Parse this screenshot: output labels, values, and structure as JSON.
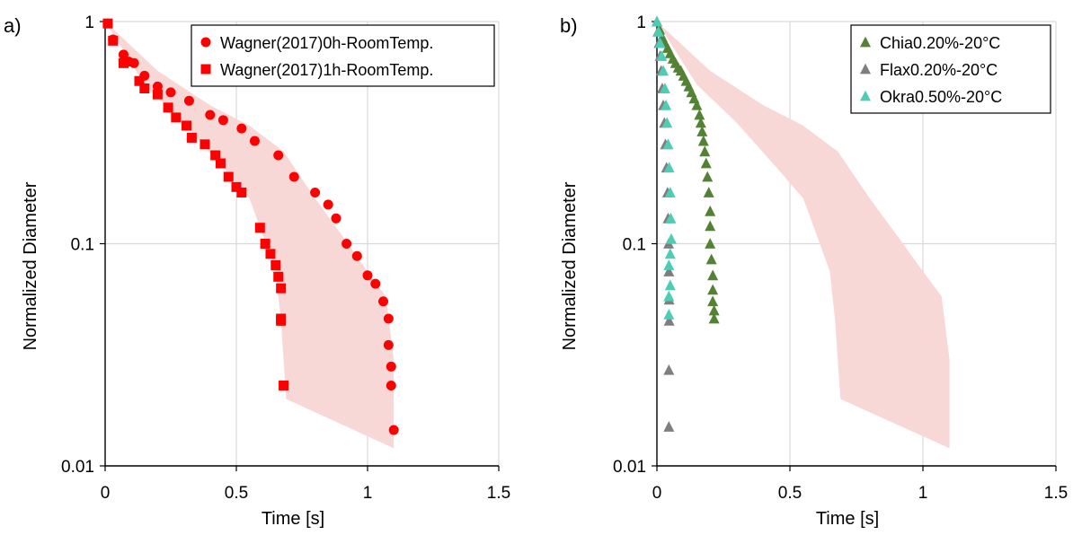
{
  "chart_data": [
    {
      "type": "scatter",
      "panel_label": "a)",
      "xlabel": "Time [s]",
      "ylabel": "Normalized Diameter",
      "xlim": [
        0,
        1.5
      ],
      "ylim": [
        0.01,
        1
      ],
      "yscale": "log",
      "grid": true,
      "legend_position": "top-right",
      "x_ticks": [
        "0",
        "0.5",
        "1",
        "1.5"
      ],
      "y_ticks": [
        "0.01",
        "0.1",
        "1"
      ],
      "band": {
        "color": "#f8d7d7",
        "upper": [
          [
            0.0,
            1.0
          ],
          [
            0.2,
            0.6
          ],
          [
            0.4,
            0.42
          ],
          [
            0.55,
            0.34
          ],
          [
            0.68,
            0.26
          ],
          [
            0.8,
            0.16
          ],
          [
            0.9,
            0.11
          ],
          [
            1.0,
            0.075
          ],
          [
            1.07,
            0.058
          ],
          [
            1.1,
            0.03
          ],
          [
            1.1,
            0.012
          ]
        ],
        "lower": [
          [
            0.0,
            1.0
          ],
          [
            0.15,
            0.52
          ],
          [
            0.3,
            0.35
          ],
          [
            0.45,
            0.22
          ],
          [
            0.55,
            0.16
          ],
          [
            0.6,
            0.11
          ],
          [
            0.65,
            0.075
          ],
          [
            0.67,
            0.045
          ],
          [
            0.69,
            0.02
          ],
          [
            1.1,
            0.012
          ]
        ]
      },
      "series": [
        {
          "name": "Wagner(2017)0h-RoomTemp.",
          "marker": "circle",
          "color": "#ff0000",
          "points": [
            [
              0.01,
              0.98
            ],
            [
              0.03,
              0.83
            ],
            [
              0.07,
              0.71
            ],
            [
              0.09,
              0.66
            ],
            [
              0.11,
              0.65
            ],
            [
              0.15,
              0.57
            ],
            [
              0.2,
              0.51
            ],
            [
              0.25,
              0.48
            ],
            [
              0.32,
              0.44
            ],
            [
              0.4,
              0.38
            ],
            [
              0.45,
              0.36
            ],
            [
              0.52,
              0.33
            ],
            [
              0.57,
              0.29
            ],
            [
              0.66,
              0.25
            ],
            [
              0.72,
              0.2
            ],
            [
              0.8,
              0.17
            ],
            [
              0.85,
              0.15
            ],
            [
              0.88,
              0.13
            ],
            [
              0.92,
              0.1
            ],
            [
              0.96,
              0.088
            ],
            [
              1.0,
              0.072
            ],
            [
              1.03,
              0.066
            ],
            [
              1.06,
              0.055
            ],
            [
              1.08,
              0.046
            ],
            [
              1.08,
              0.035
            ],
            [
              1.09,
              0.028
            ],
            [
              1.09,
              0.023
            ],
            [
              1.1,
              0.0145
            ]
          ]
        },
        {
          "name": "Wagner(2017)1h-RoomTemp.",
          "marker": "square",
          "color": "#ff0000",
          "points": [
            [
              0.01,
              0.98
            ],
            [
              0.03,
              0.82
            ],
            [
              0.07,
              0.65
            ],
            [
              0.13,
              0.54
            ],
            [
              0.15,
              0.5
            ],
            [
              0.2,
              0.47
            ],
            [
              0.24,
              0.41
            ],
            [
              0.27,
              0.37
            ],
            [
              0.31,
              0.34
            ],
            [
              0.33,
              0.3
            ],
            [
              0.38,
              0.28
            ],
            [
              0.42,
              0.25
            ],
            [
              0.44,
              0.23
            ],
            [
              0.47,
              0.2
            ],
            [
              0.5,
              0.18
            ],
            [
              0.52,
              0.17
            ],
            [
              0.59,
              0.118
            ],
            [
              0.61,
              0.1
            ],
            [
              0.63,
              0.09
            ],
            [
              0.65,
              0.08
            ],
            [
              0.66,
              0.071
            ],
            [
              0.67,
              0.063
            ],
            [
              0.67,
              0.045
            ],
            [
              0.67,
              0.046
            ],
            [
              0.68,
              0.023
            ]
          ]
        }
      ]
    },
    {
      "type": "scatter",
      "panel_label": "b)",
      "xlabel": "Time [s]",
      "ylabel": "Normalized Diameter",
      "xlim": [
        0,
        1.5
      ],
      "ylim": [
        0.01,
        1
      ],
      "yscale": "log",
      "grid": true,
      "legend_position": "top-right",
      "x_ticks": [
        "0",
        "0.5",
        "1",
        "1.5"
      ],
      "y_ticks": [
        "0.01",
        "0.1",
        "1"
      ],
      "band": {
        "color": "#f8d7d7",
        "upper": [
          [
            0.0,
            1.0
          ],
          [
            0.2,
            0.6
          ],
          [
            0.4,
            0.42
          ],
          [
            0.55,
            0.34
          ],
          [
            0.68,
            0.26
          ],
          [
            0.8,
            0.16
          ],
          [
            0.9,
            0.11
          ],
          [
            1.0,
            0.075
          ],
          [
            1.07,
            0.058
          ],
          [
            1.1,
            0.03
          ],
          [
            1.1,
            0.012
          ]
        ],
        "lower": [
          [
            0.0,
            1.0
          ],
          [
            0.15,
            0.52
          ],
          [
            0.3,
            0.35
          ],
          [
            0.45,
            0.22
          ],
          [
            0.55,
            0.16
          ],
          [
            0.6,
            0.11
          ],
          [
            0.65,
            0.075
          ],
          [
            0.67,
            0.045
          ],
          [
            0.69,
            0.02
          ],
          [
            1.1,
            0.012
          ]
        ]
      },
      "series": [
        {
          "name": "Chia0.20%-20°C",
          "marker": "triangle",
          "color": "#548235",
          "points": [
            [
              0.0,
              1.0
            ],
            [
              0.01,
              0.92
            ],
            [
              0.02,
              0.85
            ],
            [
              0.03,
              0.8
            ],
            [
              0.04,
              0.76
            ],
            [
              0.05,
              0.72
            ],
            [
              0.06,
              0.68
            ],
            [
              0.07,
              0.65
            ],
            [
              0.08,
              0.62
            ],
            [
              0.09,
              0.6
            ],
            [
              0.1,
              0.57
            ],
            [
              0.11,
              0.54
            ],
            [
              0.12,
              0.51
            ],
            [
              0.13,
              0.48
            ],
            [
              0.14,
              0.45
            ],
            [
              0.15,
              0.42
            ],
            [
              0.16,
              0.38
            ],
            [
              0.165,
              0.35
            ],
            [
              0.17,
              0.32
            ],
            [
              0.175,
              0.29
            ],
            [
              0.18,
              0.26
            ],
            [
              0.185,
              0.23
            ],
            [
              0.19,
              0.2
            ],
            [
              0.195,
              0.17
            ],
            [
              0.2,
              0.14
            ],
            [
              0.2,
              0.12
            ],
            [
              0.2,
              0.1
            ],
            [
              0.205,
              0.085
            ],
            [
              0.21,
              0.072
            ],
            [
              0.21,
              0.062
            ],
            [
              0.21,
              0.055
            ],
            [
              0.215,
              0.05
            ],
            [
              0.215,
              0.046
            ]
          ]
        },
        {
          "name": "Flax0.20%-20°C",
          "marker": "triangle",
          "color": "#7f7f7f",
          "points": [
            [
              0.0,
              1.0
            ],
            [
              0.004,
              0.9
            ],
            [
              0.008,
              0.8
            ],
            [
              0.012,
              0.7
            ],
            [
              0.016,
              0.6
            ],
            [
              0.02,
              0.5
            ],
            [
              0.024,
              0.42
            ],
            [
              0.028,
              0.35
            ],
            [
              0.032,
              0.28
            ],
            [
              0.036,
              0.22
            ],
            [
              0.04,
              0.17
            ],
            [
              0.042,
              0.13
            ],
            [
              0.044,
              0.1
            ],
            [
              0.045,
              0.075
            ],
            [
              0.046,
              0.056
            ],
            [
              0.046,
              0.045
            ],
            [
              0.045,
              0.027
            ],
            [
              0.045,
              0.015
            ]
          ]
        },
        {
          "name": "Okra0.50%-20°C",
          "marker": "triangle",
          "color": "#4ecdb4",
          "points": [
            [
              0.0,
              1.0
            ],
            [
              0.006,
              0.9
            ],
            [
              0.012,
              0.8
            ],
            [
              0.018,
              0.7
            ],
            [
              0.024,
              0.6
            ],
            [
              0.03,
              0.5
            ],
            [
              0.034,
              0.42
            ],
            [
              0.038,
              0.35
            ],
            [
              0.042,
              0.28
            ],
            [
              0.046,
              0.22
            ],
            [
              0.05,
              0.17
            ],
            [
              0.052,
              0.13
            ],
            [
              0.054,
              0.105
            ],
            [
              0.05,
              0.09
            ],
            [
              0.045,
              0.08
            ],
            [
              0.05,
              0.065
            ],
            [
              0.045,
              0.058
            ],
            [
              0.045,
              0.048
            ]
          ]
        }
      ]
    }
  ]
}
